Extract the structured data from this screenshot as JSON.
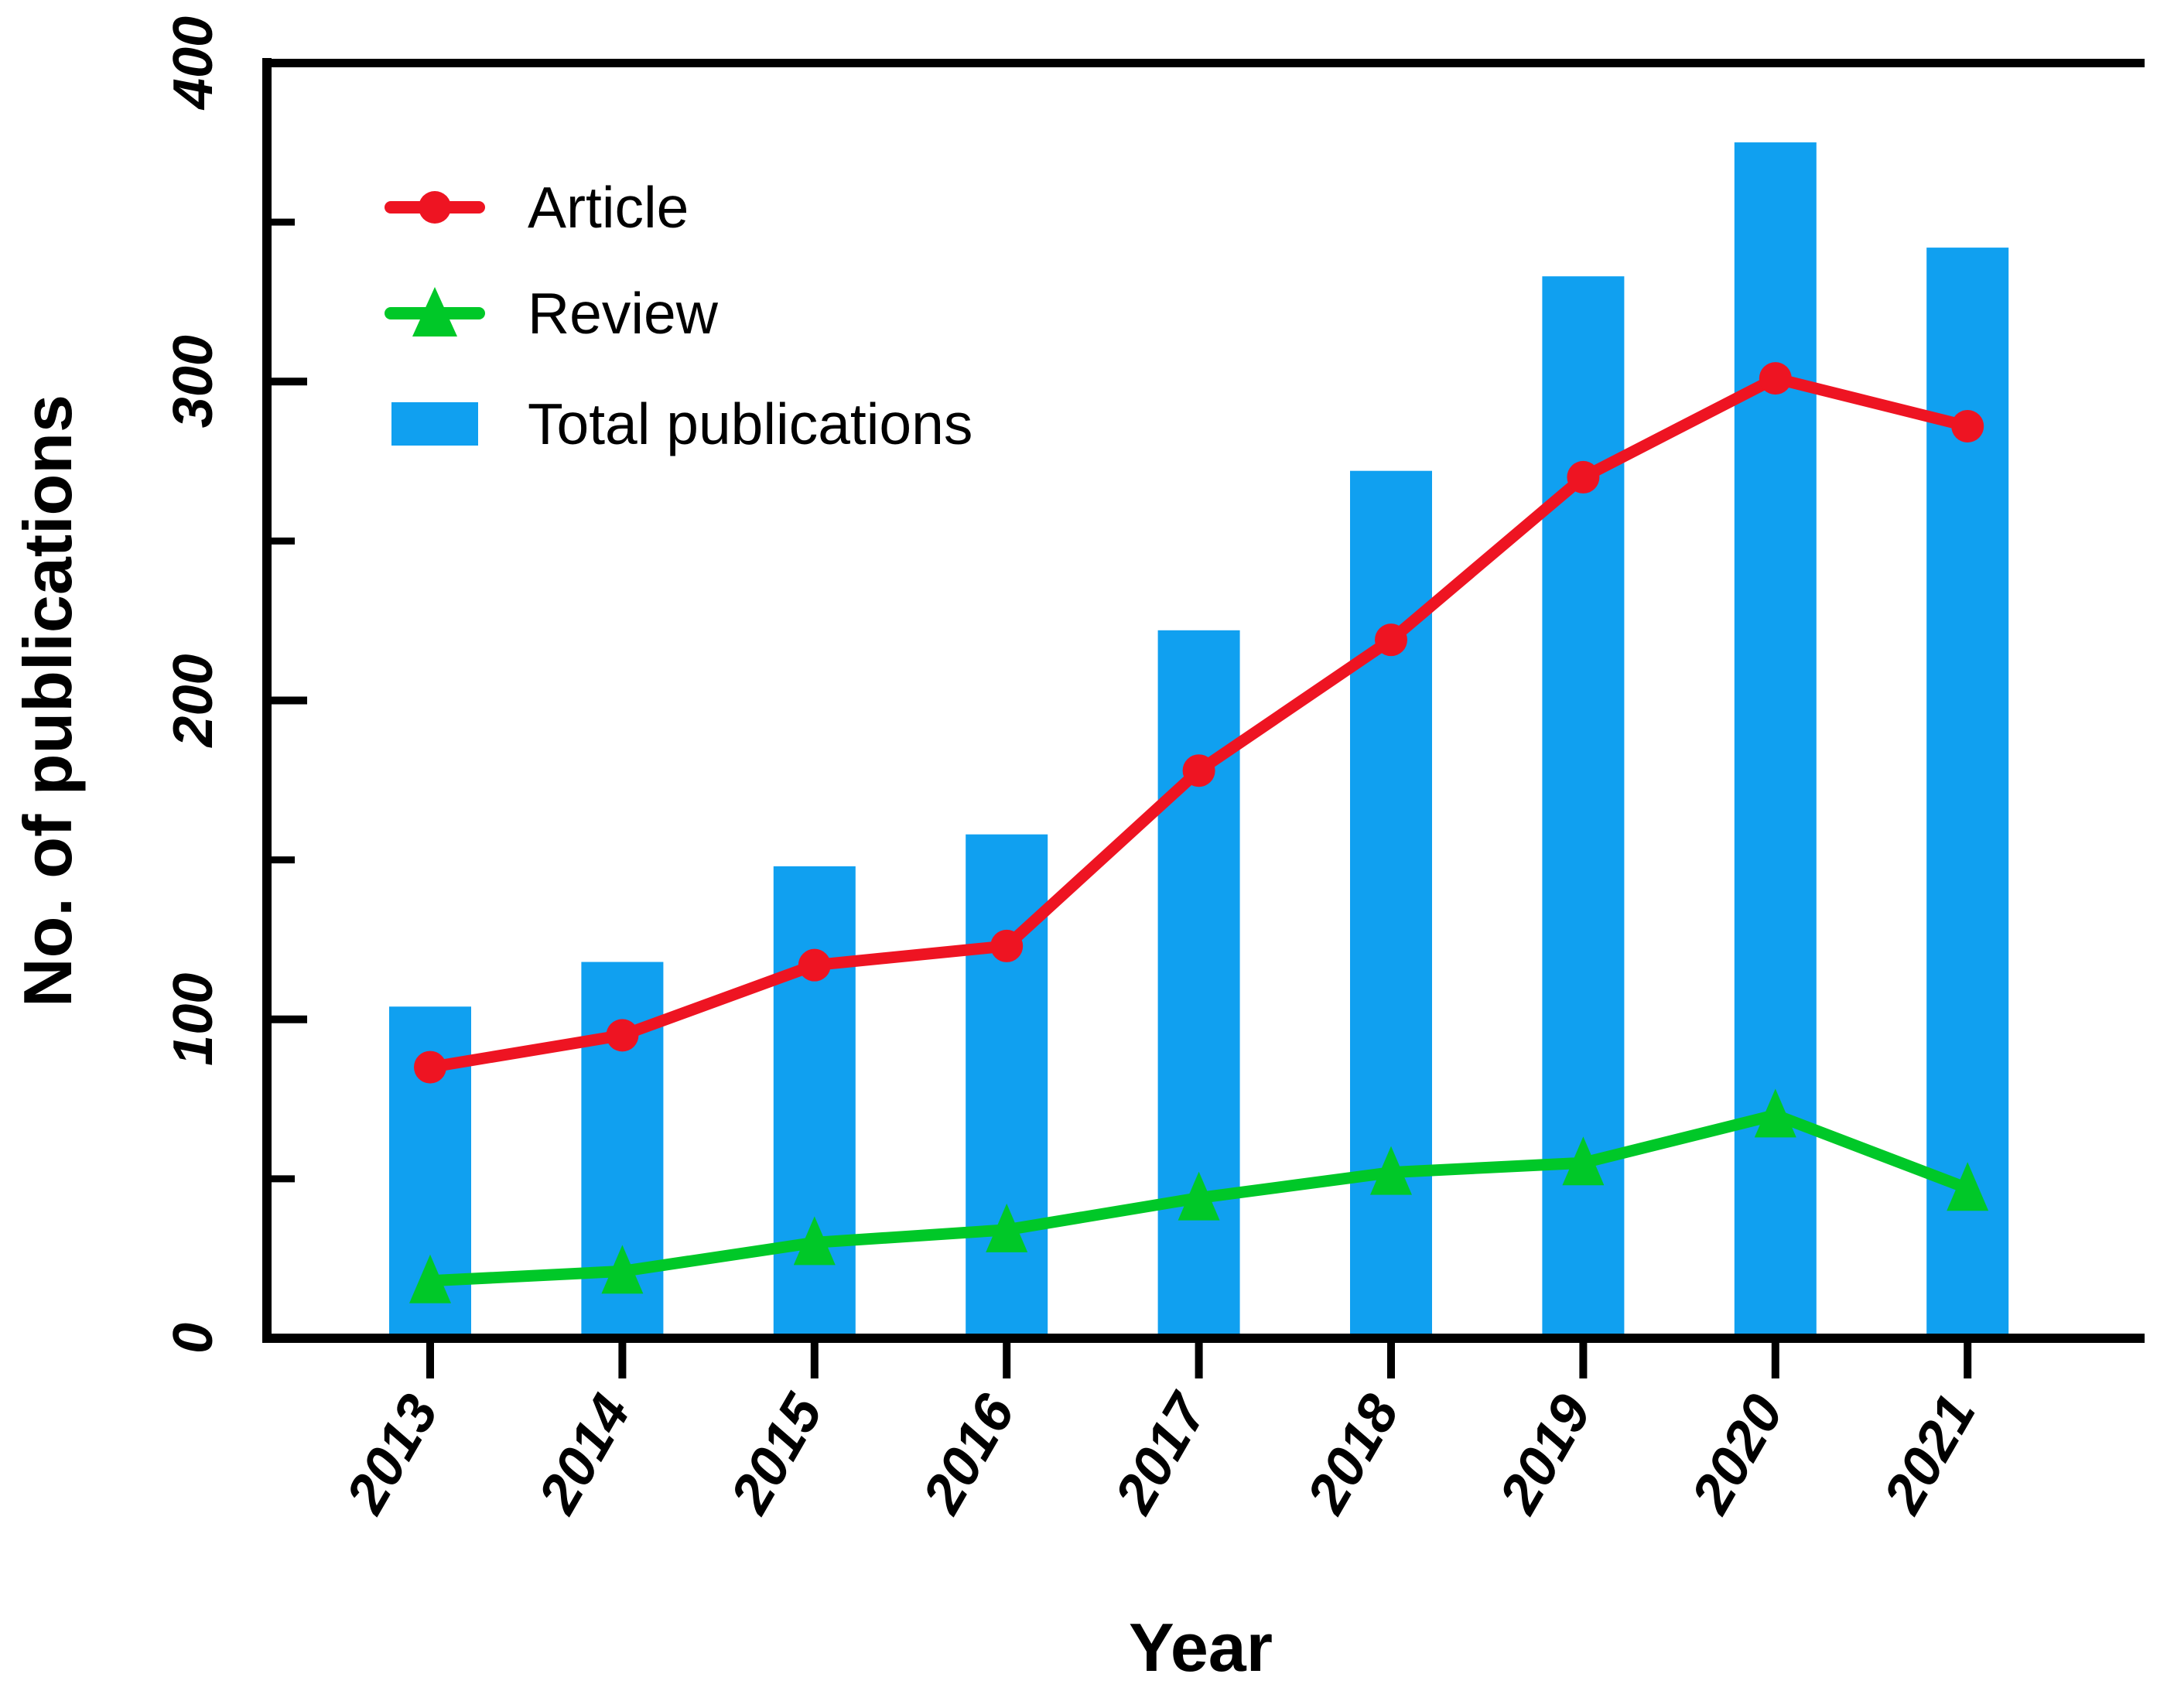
{
  "chart_data": {
    "type": "combo-bar-line",
    "title": "",
    "xlabel": "Year",
    "ylabel": "No. of publications",
    "categories": [
      "2013",
      "2014",
      "2015",
      "2016",
      "2017",
      "2018",
      "2019",
      "2020",
      "2021"
    ],
    "ylim": [
      0,
      400
    ],
    "y_major_ticks": [
      0,
      100,
      200,
      300,
      400
    ],
    "y_minor_ticks": [
      50,
      150,
      250,
      350
    ],
    "grid": false,
    "legend_position": "top-left-inside",
    "axis_color": "#000000",
    "series": [
      {
        "name": "Article",
        "type": "line",
        "marker": "circle",
        "color": "#EE1422",
        "values": [
          85,
          95,
          117,
          123,
          178,
          219,
          270,
          301,
          286
        ]
      },
      {
        "name": "Review",
        "type": "line",
        "marker": "triangle",
        "color": "#00C828",
        "values": [
          18,
          21,
          30,
          34,
          44,
          52,
          55,
          70,
          47
        ]
      },
      {
        "name": "Total publications",
        "type": "bar",
        "color": "#10A0F0",
        "values": [
          104,
          118,
          148,
          158,
          222,
          272,
          333,
          375,
          342
        ]
      }
    ]
  }
}
